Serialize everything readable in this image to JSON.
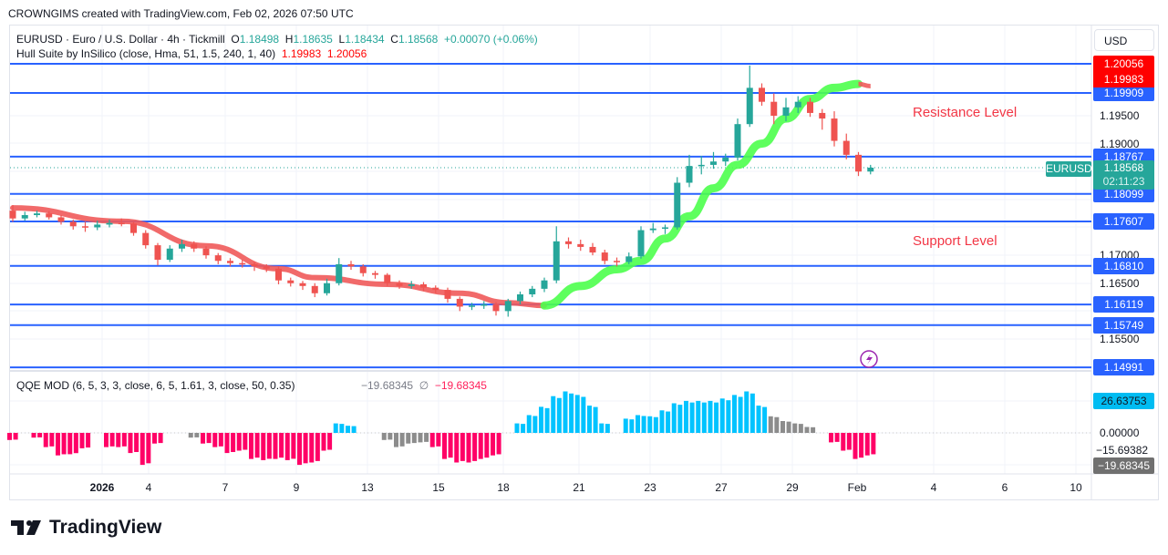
{
  "credit": "CROWNGIMS created with TradingView.com, Feb 02, 2026 07:50 UTC",
  "legend": {
    "symbol": "EURUSD · Euro / U.S. Dollar · 4h · Tickmill",
    "o_label": "O",
    "o": "1.18498",
    "h_label": "H",
    "h": "1.18635",
    "l_label": "L",
    "l": "1.18434",
    "c_label": "C",
    "c": "1.18568",
    "change": "+0.00070 (+0.06%)",
    "hull_name": "Hull Suite by InSilico (close, Hma, 51, 1.5, 240, 1, 40)",
    "hull_v1": "1.19983",
    "hull_v2": "1.20056",
    "qqe_name": "QQE MOD (6, 5, 3, 3, close, 6, 5, 1.61, 3, close, 50, 0.35)",
    "qqe_v1": "−19.68345",
    "qqe_sym": "∅",
    "qqe_v2": "−19.68345"
  },
  "price_axis": {
    "currency": "USD",
    "hull_labels": [
      "1.20056",
      "1.19983"
    ],
    "ticks": [
      "1.19500",
      "1.19000",
      "1.17000",
      "1.16500",
      "1.15500"
    ],
    "current": {
      "symbol": "EURUSD",
      "price": "1.18568",
      "countdown": "02:11:23"
    }
  },
  "levels": [
    {
      "price": 1.19909,
      "label": "1.19909"
    },
    {
      "price": 1.18767,
      "label": "1.18767"
    },
    {
      "price": 1.18099,
      "label": "1.18099"
    },
    {
      "price": 1.17607,
      "label": "1.17607"
    },
    {
      "price": 1.1681,
      "label": "1.16810"
    },
    {
      "price": 1.16119,
      "label": "1.16119"
    },
    {
      "price": 1.15749,
      "label": "1.15749"
    },
    {
      "price": 1.14991,
      "label": "1.14991"
    }
  ],
  "annotations": {
    "resistance": "Resistance Level",
    "support": "Support Level"
  },
  "qqe_axis": [
    "26.63753",
    "0.00000",
    "−15.69382",
    "−19.68345"
  ],
  "time_axis": [
    "2026",
    "4",
    "7",
    "9",
    "13",
    "15",
    "18",
    "21",
    "23",
    "27",
    "29",
    "Feb",
    "4",
    "6",
    "10"
  ],
  "logo": "TradingView",
  "colors": {
    "up": "#26a69a",
    "down": "#ef5350",
    "level": "#2962ff",
    "hull_up": "#4cff4c",
    "hull_down": "#f05a5a",
    "qqe_blue": "#00c3ff",
    "qqe_pink": "#ff0066",
    "qqe_gray": "#8c8c8c",
    "annotation": "#f23645"
  },
  "chart_data": {
    "type": "candlestick",
    "ohlc": [
      [
        1.178,
        1.179,
        1.176,
        1.1766
      ],
      [
        1.1766,
        1.1778,
        1.1762,
        1.1772
      ],
      [
        1.1772,
        1.178,
        1.1768,
        1.1775
      ],
      [
        1.1775,
        1.1779,
        1.1764,
        1.1768
      ],
      [
        1.1768,
        1.1772,
        1.1755,
        1.176
      ],
      [
        1.176,
        1.1764,
        1.1746,
        1.1752
      ],
      [
        1.1752,
        1.176,
        1.1742,
        1.175
      ],
      [
        1.175,
        1.1762,
        1.1745,
        1.1755
      ],
      [
        1.1755,
        1.1764,
        1.175,
        1.1758
      ],
      [
        1.1758,
        1.1766,
        1.1752,
        1.1757
      ],
      [
        1.1757,
        1.176,
        1.1735,
        1.174
      ],
      [
        1.174,
        1.1745,
        1.1712,
        1.1718
      ],
      [
        1.1718,
        1.1722,
        1.1682,
        1.1692
      ],
      [
        1.1692,
        1.1718,
        1.1688,
        1.1712
      ],
      [
        1.1712,
        1.1728,
        1.1706,
        1.172
      ],
      [
        1.172,
        1.1725,
        1.1706,
        1.1712
      ],
      [
        1.1712,
        1.1716,
        1.1694,
        1.17
      ],
      [
        1.17,
        1.1704,
        1.1684,
        1.169
      ],
      [
        1.169,
        1.1695,
        1.168,
        1.1686
      ],
      [
        1.1686,
        1.1692,
        1.1678,
        1.1684
      ],
      [
        1.1684,
        1.1688,
        1.1672,
        1.168
      ],
      [
        1.168,
        1.1684,
        1.167,
        1.1676
      ],
      [
        1.1676,
        1.168,
        1.1648,
        1.1655
      ],
      [
        1.1655,
        1.166,
        1.1644,
        1.165
      ],
      [
        1.165,
        1.1654,
        1.1638,
        1.1645
      ],
      [
        1.1645,
        1.165,
        1.1625,
        1.1632
      ],
      [
        1.1632,
        1.1658,
        1.1628,
        1.165
      ],
      [
        1.165,
        1.1695,
        1.1646,
        1.1684
      ],
      [
        1.1684,
        1.169,
        1.1674,
        1.168
      ],
      [
        1.168,
        1.1684,
        1.1662,
        1.1668
      ],
      [
        1.1668,
        1.1672,
        1.1658,
        1.1665
      ],
      [
        1.1665,
        1.1668,
        1.1645,
        1.165
      ],
      [
        1.165,
        1.1655,
        1.164,
        1.1645
      ],
      [
        1.1645,
        1.1654,
        1.164,
        1.1648
      ],
      [
        1.1648,
        1.1652,
        1.1636,
        1.1642
      ],
      [
        1.1642,
        1.1646,
        1.1632,
        1.1638
      ],
      [
        1.1638,
        1.1642,
        1.1615,
        1.1622
      ],
      [
        1.1622,
        1.1626,
        1.16,
        1.1608
      ],
      [
        1.1608,
        1.1615,
        1.1602,
        1.161
      ],
      [
        1.161,
        1.1618,
        1.1604,
        1.1612
      ],
      [
        1.1612,
        1.1616,
        1.1592,
        1.16
      ],
      [
        1.16,
        1.1622,
        1.159,
        1.1618
      ],
      [
        1.1618,
        1.1635,
        1.1612,
        1.163
      ],
      [
        1.163,
        1.1645,
        1.1625,
        1.164
      ],
      [
        1.164,
        1.166,
        1.1634,
        1.1655
      ],
      [
        1.1655,
        1.1752,
        1.165,
        1.1725
      ],
      [
        1.1725,
        1.1732,
        1.1712,
        1.172
      ],
      [
        1.172,
        1.1728,
        1.1708,
        1.1715
      ],
      [
        1.1715,
        1.1722,
        1.17,
        1.1705
      ],
      [
        1.1705,
        1.171,
        1.1684,
        1.169
      ],
      [
        1.169,
        1.1696,
        1.168,
        1.1688
      ],
      [
        1.1688,
        1.1705,
        1.1684,
        1.1698
      ],
      [
        1.1698,
        1.1752,
        1.1694,
        1.1745
      ],
      [
        1.1745,
        1.1758,
        1.174,
        1.1748
      ],
      [
        1.1748,
        1.1755,
        1.1738,
        1.175
      ],
      [
        1.175,
        1.184,
        1.1746,
        1.183
      ],
      [
        1.183,
        1.188,
        1.1822,
        1.186
      ],
      [
        1.186,
        1.1878,
        1.1845,
        1.1862
      ],
      [
        1.1862,
        1.1885,
        1.1855,
        1.1868
      ],
      [
        1.1868,
        1.1882,
        1.186,
        1.1875
      ],
      [
        1.1875,
        1.1945,
        1.187,
        1.1935
      ],
      [
        1.1935,
        1.204,
        1.193,
        1.2
      ],
      [
        1.2,
        1.2008,
        1.1968,
        1.1975
      ],
      [
        1.1975,
        1.199,
        1.1935,
        1.195
      ],
      [
        1.195,
        1.1982,
        1.194,
        1.1965
      ],
      [
        1.1965,
        1.1985,
        1.1955,
        1.1975
      ],
      [
        1.1975,
        1.1982,
        1.1948,
        1.1955
      ],
      [
        1.1955,
        1.1962,
        1.1925,
        1.1945
      ],
      [
        1.1945,
        1.1958,
        1.1895,
        1.1905
      ],
      [
        1.1905,
        1.1918,
        1.1872,
        1.188
      ],
      [
        1.188,
        1.1885,
        1.1842,
        1.185
      ],
      [
        1.185,
        1.1862,
        1.1845,
        1.1857
      ]
    ],
    "hull": {
      "down_1": [
        [
          0,
          1.1785
        ],
        [
          9,
          1.1761
        ],
        [
          16,
          1.1717
        ],
        [
          22,
          1.1676
        ],
        [
          25,
          1.166
        ],
        [
          31,
          1.1648
        ],
        [
          37,
          1.1632
        ],
        [
          41,
          1.1615
        ],
        [
          44,
          1.161
        ]
      ],
      "up": [
        [
          44,
          1.161
        ],
        [
          47,
          1.1645
        ],
        [
          50,
          1.1675
        ],
        [
          52,
          1.169
        ],
        [
          54,
          1.173
        ],
        [
          56,
          1.177
        ],
        [
          58,
          1.182
        ],
        [
          60,
          1.1862
        ],
        [
          62,
          1.19
        ],
        [
          64,
          1.1945
        ],
        [
          66,
          1.198
        ],
        [
          68,
          1.2
        ],
        [
          70,
          1.2007
        ]
      ],
      "down_2": [
        [
          70,
          1.2007
        ],
        [
          71,
          1.2003
        ]
      ]
    },
    "qqe": [
      [
        -6,
        "pink"
      ],
      null,
      [
        -4,
        "pink"
      ],
      [
        -12,
        "pink"
      ],
      [
        -19,
        "pink"
      ],
      [
        -18,
        "pink"
      ],
      [
        -13,
        "pink"
      ],
      null,
      [
        -12,
        "pink"
      ],
      [
        -12,
        "pink"
      ],
      [
        -17,
        "pink"
      ],
      [
        -27,
        "pink"
      ],
      [
        -9,
        "pink"
      ],
      null,
      null,
      [
        -4,
        "gray"
      ],
      [
        -9,
        "pink"
      ],
      [
        -12,
        "pink"
      ],
      [
        -17,
        "pink"
      ],
      [
        -15,
        "pink"
      ],
      [
        -22,
        "pink"
      ],
      [
        -23,
        "pink"
      ],
      [
        -22,
        "pink"
      ],
      [
        -23,
        "pink"
      ],
      [
        -27,
        "pink"
      ],
      [
        -25,
        "pink"
      ],
      [
        -15,
        "pink"
      ],
      [
        8,
        "blue"
      ],
      [
        6,
        "blue"
      ],
      null,
      null,
      [
        -6,
        "gray"
      ],
      [
        -12,
        "gray"
      ],
      [
        -9,
        "gray"
      ],
      [
        -8,
        "gray"
      ],
      [
        -12,
        "pink"
      ],
      [
        -22,
        "pink"
      ],
      [
        -25,
        "pink"
      ],
      [
        -25,
        "pink"
      ],
      [
        -22,
        "pink"
      ],
      [
        -19,
        "pink"
      ],
      null,
      [
        8,
        "blue"
      ],
      [
        15,
        "blue"
      ],
      [
        22,
        "blue"
      ],
      [
        31,
        "blue"
      ],
      [
        35,
        "blue"
      ],
      [
        32,
        "blue"
      ],
      [
        23,
        "blue"
      ],
      [
        8,
        "blue"
      ],
      null,
      [
        12,
        "blue"
      ],
      [
        15,
        "blue"
      ],
      [
        14,
        "blue"
      ],
      [
        19,
        "blue"
      ],
      [
        25,
        "blue"
      ],
      [
        27,
        "blue"
      ],
      [
        27,
        "blue"
      ],
      [
        27,
        "blue"
      ],
      [
        29,
        "blue"
      ],
      [
        32,
        "blue"
      ],
      [
        35,
        "blue"
      ],
      [
        23,
        "blue"
      ],
      [
        14,
        "gray"
      ],
      [
        10,
        "gray"
      ],
      [
        8,
        "gray"
      ],
      [
        5,
        "gray"
      ],
      null,
      [
        -8,
        "pink"
      ],
      [
        -15,
        "pink"
      ],
      [
        -22,
        "pink"
      ],
      [
        -19,
        "pink"
      ]
    ],
    "qqe_ylim": [
      -19.68345,
      26.63753
    ]
  }
}
